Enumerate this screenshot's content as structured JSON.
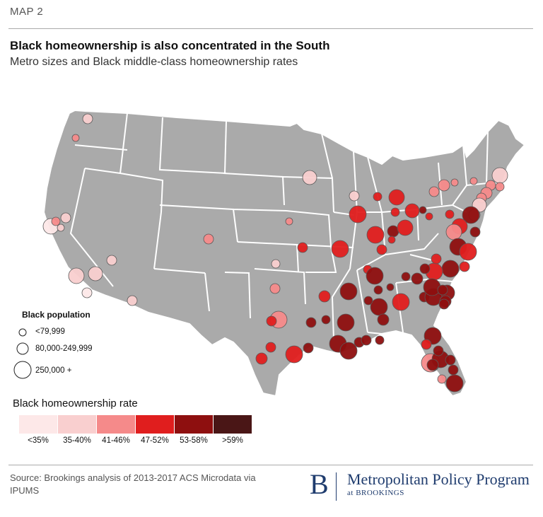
{
  "header": {
    "kicker": "MAP 2",
    "title": "Black homeownership is also concentrated in the South",
    "subtitle": "Metro sizes and Black middle-class homeownership rates"
  },
  "size_legend": {
    "title": "Black population",
    "items": [
      {
        "label": "<79,999",
        "size": "small"
      },
      {
        "label": "80,000-249,999",
        "size": "medium"
      },
      {
        "label": "250,000 +",
        "size": "large"
      }
    ]
  },
  "rate_legend": {
    "title": "Black homeownership rate",
    "bins": [
      {
        "label": "<35%",
        "color": "#fde8e8"
      },
      {
        "label": "35-40%",
        "color": "#f9cfcf"
      },
      {
        "label": "41-46%",
        "color": "#f58a8a"
      },
      {
        "label": "47-52%",
        "color": "#e01e1e"
      },
      {
        "label": "53-58%",
        "color": "#8e0f0f"
      },
      {
        "label": ">59%",
        "color": "#4a1616"
      }
    ]
  },
  "map": {
    "land_color": "#aaaaaa",
    "border_color": "#ffffff"
  },
  "source": "Source: Brookings analysis of 2013-2017 ACS Microdata via IPUMS",
  "logo": {
    "letter": "B",
    "name": "Metropolitan Policy Program",
    "sub": "at BROOKINGS"
  }
}
